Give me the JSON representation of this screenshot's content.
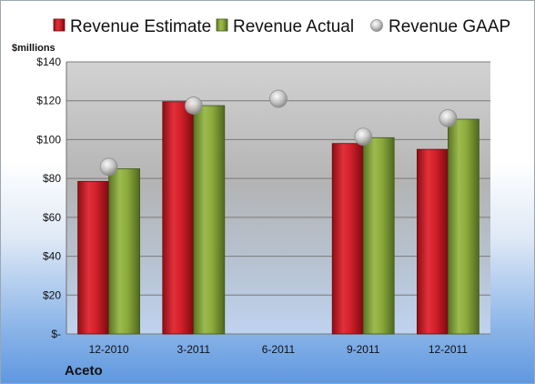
{
  "chart_data": {
    "type": "bar",
    "title": "",
    "xlabel": "",
    "ylabel": "$millions",
    "company": "Aceto",
    "categories": [
      "12-2010",
      "3-2011",
      "6-2011",
      "9-2011",
      "12-2011"
    ],
    "series": [
      {
        "name": "Revenue Estimate",
        "kind": "bar",
        "color": "#d6202a",
        "values": [
          78.5,
          119.5,
          null,
          98,
          95
        ]
      },
      {
        "name": "Revenue Actual",
        "kind": "bar",
        "color": "#8caa3c",
        "values": [
          85,
          117.5,
          null,
          101,
          110.5
        ]
      },
      {
        "name": "Revenue GAAP",
        "kind": "marker",
        "color": "#b8b8b8",
        "values": [
          86,
          117.5,
          121,
          101.5,
          111
        ]
      }
    ],
    "ylim": [
      0,
      140
    ],
    "y_ticks": [
      0,
      20,
      40,
      60,
      80,
      100,
      120,
      140
    ],
    "y_tick_labels": [
      "$-",
      "$20",
      "$40",
      "$60",
      "$80",
      "$100",
      "$120",
      "$140"
    ],
    "grid": true,
    "legend_position": "top"
  }
}
